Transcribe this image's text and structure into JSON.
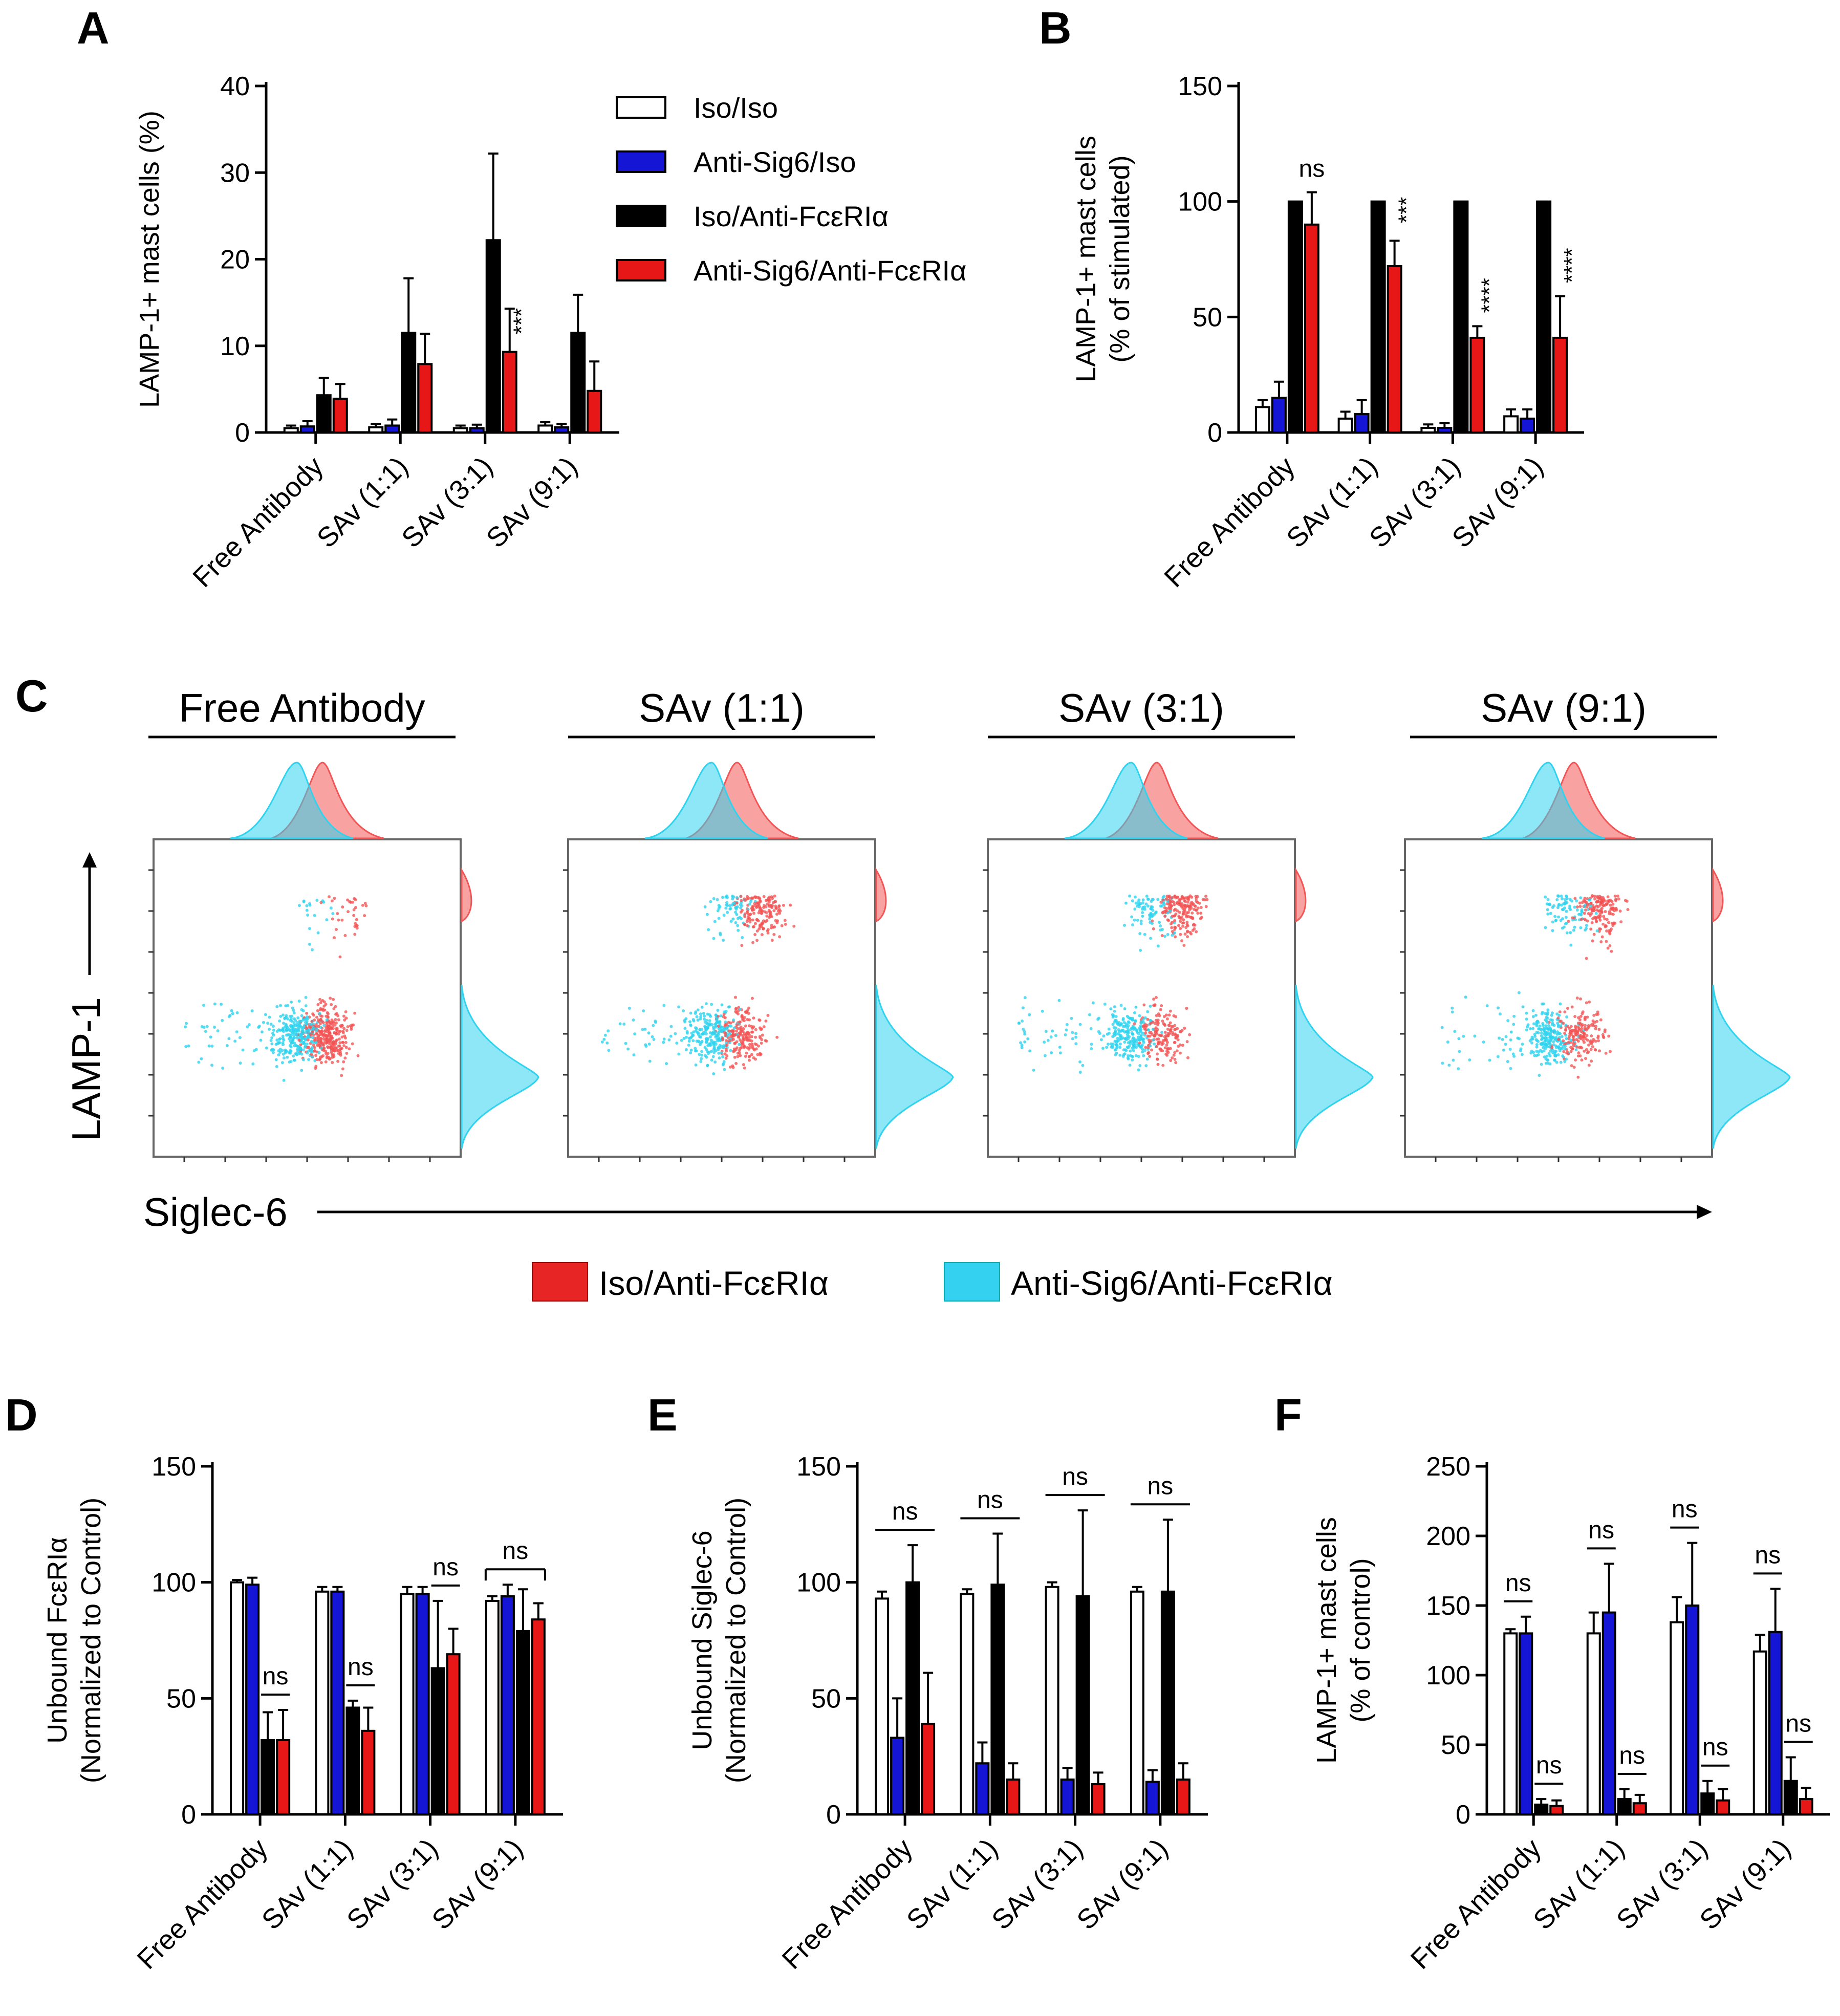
{
  "colors": {
    "iso_iso": "#ffffff",
    "anti_sig6_iso": "#1515d6",
    "iso_anti_fc": "#000000",
    "anti_sig6_anti_fc": "#e81717",
    "flow_red": "#f25555",
    "flow_cyan": "#2fd3ef"
  },
  "chart_data": [
    {
      "type": "bar",
      "panel": "A",
      "title": "",
      "ylabel": "LAMP-1+ mast cells (%)",
      "ylim": [
        0,
        40
      ],
      "yticks": [
        0,
        10,
        20,
        30,
        40
      ],
      "categories": [
        "Free Antibody",
        "SAv (1:1)",
        "SAv (3:1)",
        "SAv (9:1)"
      ],
      "series": [
        {
          "name": "Iso/Iso",
          "values": [
            0.5,
            0.6,
            0.5,
            0.8
          ],
          "errors": [
            0.3,
            0.4,
            0.3,
            0.4
          ]
        },
        {
          "name": "Anti-Sig6/Iso",
          "values": [
            0.7,
            0.8,
            0.5,
            0.6
          ],
          "errors": [
            0.6,
            0.7,
            0.4,
            0.4
          ]
        },
        {
          "name": "Iso/Anti-FcεRIα",
          "values": [
            4.3,
            11.5,
            22.2,
            11.5
          ],
          "errors": [
            2.0,
            6.3,
            10.0,
            4.4
          ]
        },
        {
          "name": "Anti-Sig6/Anti-FcεRIα",
          "values": [
            3.9,
            7.9,
            9.3,
            4.8
          ],
          "errors": [
            1.7,
            3.5,
            5.0,
            3.4
          ]
        }
      ],
      "annotations": [
        {
          "label": "***",
          "category": 2,
          "series": 3,
          "vertical": true
        }
      ],
      "legend": [
        "Iso/Iso",
        "Anti-Sig6/Iso",
        "Iso/Anti-FcεRIα",
        "Anti-Sig6/Anti-FcεRIα"
      ]
    },
    {
      "type": "bar",
      "panel": "B",
      "title": "",
      "ylabel": "LAMP-1+ mast cells (% of stimulated)",
      "ylim": [
        0,
        150
      ],
      "yticks": [
        0,
        50,
        100,
        150
      ],
      "categories": [
        "Free Antibody",
        "SAv (1:1)",
        "SAv (3:1)",
        "SAv (9:1)"
      ],
      "series": [
        {
          "name": "Iso/Iso",
          "values": [
            11,
            6,
            2,
            7
          ],
          "errors": [
            3,
            3,
            1.5,
            3
          ]
        },
        {
          "name": "Anti-Sig6/Iso",
          "values": [
            15,
            8,
            2,
            6
          ],
          "errors": [
            7,
            6,
            2,
            4
          ]
        },
        {
          "name": "Iso/Anti-FcεRIα",
          "values": [
            100,
            100,
            100,
            100
          ],
          "errors": [
            0,
            0,
            0,
            0
          ]
        },
        {
          "name": "Anti-Sig6/Anti-FcεRIα",
          "values": [
            90,
            72,
            41,
            41
          ],
          "errors": [
            14,
            11,
            5,
            18
          ]
        }
      ],
      "annotations": [
        {
          "label": "ns",
          "category": 0,
          "series": 3,
          "vertical": false
        },
        {
          "label": "***",
          "category": 1,
          "series": 3,
          "vertical": true
        },
        {
          "label": "****",
          "category": 2,
          "series": 3,
          "vertical": true
        },
        {
          "label": "****",
          "category": 3,
          "series": 3,
          "vertical": true
        }
      ]
    },
    {
      "type": "scatter",
      "panel": "C",
      "xlabel": "Siglec-6",
      "ylabel": "LAMP-1",
      "subplots": [
        "Free Antibody",
        "SAv (1:1)",
        "SAv (3:1)",
        "SAv (9:1)"
      ],
      "legend": [
        "Iso/Anti-FcεRIα",
        "Anti-Sig6/Anti-FcεRIα"
      ]
    },
    {
      "type": "bar",
      "panel": "D",
      "ylabel": "Unbound FcεRIα (Normalized to Control)",
      "ylim": [
        0,
        150
      ],
      "yticks": [
        0,
        50,
        100,
        150
      ],
      "categories": [
        "Free Antibody",
        "SAv (1:1)",
        "SAv (3:1)",
        "SAv (9:1)"
      ],
      "series": [
        {
          "name": "Iso/Iso",
          "values": [
            100,
            96,
            95,
            92
          ],
          "errors": [
            1,
            2,
            3,
            2
          ]
        },
        {
          "name": "Anti-Sig6/Iso",
          "values": [
            99,
            96,
            95,
            94
          ],
          "errors": [
            3,
            2,
            3,
            5
          ]
        },
        {
          "name": "Iso/Anti-FcεRIα",
          "values": [
            32,
            46,
            63,
            79
          ],
          "errors": [
            12,
            3,
            29,
            18
          ]
        },
        {
          "name": "Anti-Sig6/Anti-FcεRIα",
          "values": [
            32,
            36,
            69,
            84
          ],
          "errors": [
            13,
            10,
            11,
            7
          ]
        }
      ],
      "annotations": [
        {
          "label": "ns",
          "from": [
            0,
            2
          ],
          "to": [
            0,
            3
          ]
        },
        {
          "label": "ns",
          "from": [
            1,
            2
          ],
          "to": [
            1,
            3
          ]
        },
        {
          "label": "ns",
          "from": [
            2,
            2
          ],
          "to": [
            2,
            3
          ]
        },
        {
          "label": "ns",
          "from": [
            3,
            0
          ],
          "to": [
            3,
            3
          ],
          "bracket": true
        }
      ]
    },
    {
      "type": "bar",
      "panel": "E",
      "ylabel": "Unbound Siglec-6 (Normalized to Control)",
      "ylim": [
        0,
        150
      ],
      "yticks": [
        0,
        50,
        100,
        150
      ],
      "categories": [
        "Free Antibody",
        "SAv (1:1)",
        "SAv (3:1)",
        "SAv (9:1)"
      ],
      "series": [
        {
          "name": "Iso/Iso",
          "values": [
            93,
            95,
            98,
            96
          ],
          "errors": [
            3,
            2,
            2,
            2
          ]
        },
        {
          "name": "Anti-Sig6/Iso",
          "values": [
            33,
            22,
            15,
            14
          ],
          "errors": [
            17,
            9,
            5,
            5
          ]
        },
        {
          "name": "Iso/Anti-FcεRIα",
          "values": [
            100,
            99,
            94,
            96
          ],
          "errors": [
            16,
            22,
            37,
            31
          ]
        },
        {
          "name": "Anti-Sig6/Anti-FcεRIα",
          "values": [
            39,
            15,
            13,
            15
          ],
          "errors": [
            22,
            7,
            5,
            7
          ]
        }
      ],
      "annotations": [
        {
          "label": "ns",
          "from": [
            0,
            0
          ],
          "to": [
            0,
            3
          ]
        },
        {
          "label": "ns",
          "from": [
            1,
            0
          ],
          "to": [
            1,
            3
          ]
        },
        {
          "label": "ns",
          "from": [
            2,
            0
          ],
          "to": [
            2,
            3
          ]
        },
        {
          "label": "ns",
          "from": [
            3,
            0
          ],
          "to": [
            3,
            3
          ]
        }
      ]
    },
    {
      "type": "bar",
      "panel": "F",
      "ylabel": "LAMP-1+ mast cells (% of control)",
      "ylim": [
        0,
        250
      ],
      "yticks": [
        0,
        50,
        100,
        150,
        200,
        250
      ],
      "categories": [
        "Free Antibody",
        "SAv (1:1)",
        "SAv (3:1)",
        "SAv (9:1)"
      ],
      "series": [
        {
          "name": "Iso/Iso",
          "values": [
            130,
            130,
            138,
            117
          ],
          "errors": [
            3,
            15,
            18,
            12
          ]
        },
        {
          "name": "Anti-Sig6/Iso",
          "values": [
            130,
            145,
            150,
            131
          ],
          "errors": [
            12,
            35,
            45,
            31
          ]
        },
        {
          "name": "Iso/Anti-FcεRIα",
          "values": [
            7,
            11,
            15,
            24
          ],
          "errors": [
            4,
            7,
            9,
            17
          ]
        },
        {
          "name": "Anti-Sig6/Anti-FcεRIα",
          "values": [
            6,
            8,
            10,
            11
          ],
          "errors": [
            4,
            6,
            8,
            8
          ]
        }
      ],
      "annotations": [
        {
          "label": "ns",
          "from": [
            0,
            0
          ],
          "to": [
            0,
            1
          ]
        },
        {
          "label": "ns",
          "from": [
            0,
            2
          ],
          "to": [
            0,
            3
          ]
        },
        {
          "label": "ns",
          "from": [
            1,
            0
          ],
          "to": [
            1,
            1
          ]
        },
        {
          "label": "ns",
          "from": [
            1,
            2
          ],
          "to": [
            1,
            3
          ]
        },
        {
          "label": "ns",
          "from": [
            2,
            0
          ],
          "to": [
            2,
            1
          ]
        },
        {
          "label": "ns",
          "from": [
            2,
            2
          ],
          "to": [
            2,
            3
          ]
        },
        {
          "label": "ns",
          "from": [
            3,
            0
          ],
          "to": [
            3,
            1
          ]
        },
        {
          "label": "ns",
          "from": [
            3,
            2
          ],
          "to": [
            3,
            3
          ]
        }
      ]
    }
  ]
}
